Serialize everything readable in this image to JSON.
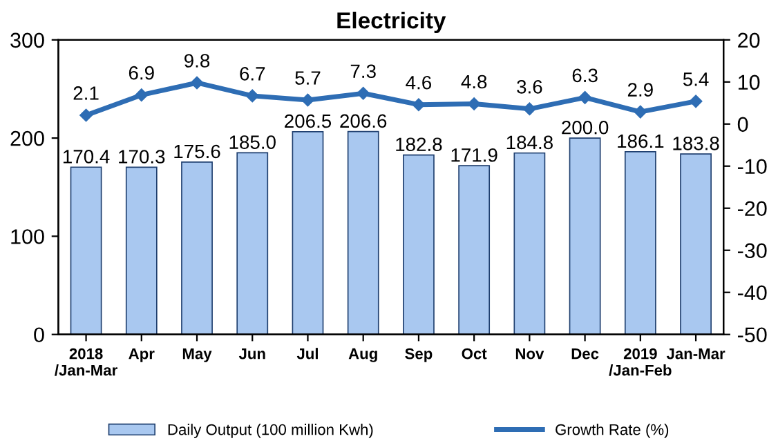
{
  "chart_data": {
    "type": "bar",
    "title": "Electricity",
    "categories": [
      "2018\n/Jan-Mar",
      "Apr",
      "May",
      "Jun",
      "Jul",
      "Aug",
      "Sep",
      "Oct",
      "Nov",
      "Dec",
      "2019\n/Jan-Feb",
      "Jan-Mar"
    ],
    "series": [
      {
        "name": "Daily Output (100 million Kwh)",
        "color": "#a9c8f0",
        "values": [
          170.4,
          170.3,
          175.6,
          185.0,
          206.5,
          206.6,
          182.8,
          171.9,
          184.8,
          200.0,
          186.1,
          183.8
        ],
        "value_labels": [
          "170.4",
          "170.3",
          "175.6",
          "185.0",
          "206.5",
          "206.6",
          "182.8",
          "171.9",
          "184.8",
          "200.0",
          "186.1",
          "183.8"
        ]
      },
      {
        "name": "Growth Rate (%)",
        "type": "line",
        "axis": "y2",
        "color": "#2e6db4",
        "marker": "diamond",
        "values": [
          2.1,
          6.9,
          9.8,
          6.7,
          5.7,
          7.3,
          4.6,
          4.8,
          3.6,
          6.3,
          2.9,
          5.4
        ],
        "value_labels": [
          "2.1",
          "6.9",
          "9.8",
          "6.7",
          "5.7",
          "7.3",
          "4.6",
          "4.8",
          "3.6",
          "6.3",
          "2.9",
          "5.4"
        ]
      }
    ],
    "ylim": [
      0,
      300
    ],
    "yticks": [
      0,
      100,
      200,
      300
    ],
    "y2lim": [
      -50,
      20
    ],
    "y2ticks": [
      -50,
      -40,
      -30,
      -20,
      -10,
      0,
      10,
      20
    ],
    "legend": "bottom",
    "grid": false
  }
}
